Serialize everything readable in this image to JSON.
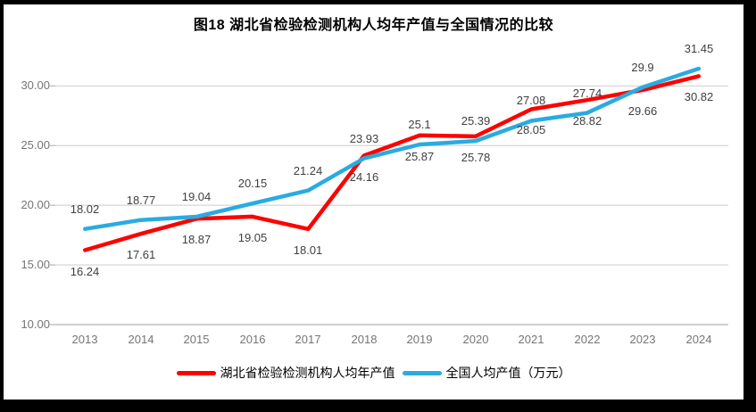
{
  "frame": {
    "background": "#000000",
    "chart_background": "#ffffff"
  },
  "chart_data": {
    "type": "line",
    "title": "图18  湖北省检验检测机构人均年产值与全国情况的比较",
    "categories": [
      "2013",
      "2014",
      "2015",
      "2016",
      "2017",
      "2018",
      "2019",
      "2020",
      "2021",
      "2022",
      "2023",
      "2024"
    ],
    "series": [
      {
        "name": "湖北省检验检测机构人均年产值",
        "color": "#ff0000",
        "label_position": "below",
        "values": [
          16.24,
          17.61,
          18.87,
          19.05,
          18.01,
          24.16,
          25.87,
          25.78,
          28.05,
          28.82,
          29.66,
          30.82
        ]
      },
      {
        "name": "全国人均产值（万元）",
        "color": "#29abe2",
        "label_position": "above",
        "values": [
          18.02,
          18.77,
          19.04,
          20.15,
          21.24,
          23.93,
          25.1,
          25.39,
          27.08,
          27.74,
          29.9,
          31.45
        ]
      }
    ],
    "y_axis": {
      "min": 10,
      "max": 33.2,
      "ticks": [
        10,
        15,
        20,
        25,
        30
      ],
      "tick_labels": [
        "10.00",
        "15.00",
        "20.00",
        "25.00",
        "30.00"
      ]
    },
    "grid": true,
    "legend_position": "bottom",
    "colors": {
      "gridline": "#d9d9d9",
      "axis_line": "#bfbfbf",
      "tick_text": "#757575",
      "data_label_text": "#404040",
      "title_text": "#000000"
    }
  }
}
